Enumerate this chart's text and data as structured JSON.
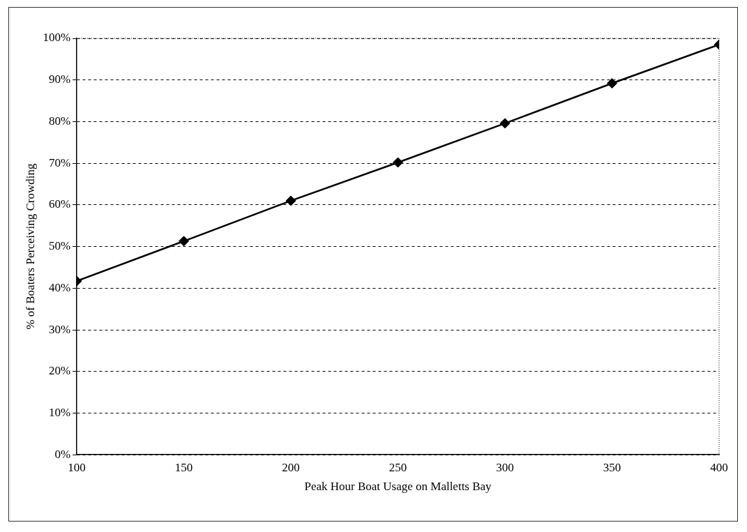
{
  "chart_data": {
    "type": "line",
    "xlabel": "Peak Hour Boat Usage on Malletts Bay",
    "ylabel": "% of Boaters Perceiving Crowding",
    "x": [
      100,
      150,
      200,
      250,
      300,
      350,
      400
    ],
    "series": [
      {
        "color": "#000000",
        "values": [
          41.7,
          51.3,
          61,
          70.2,
          79.6,
          89.2,
          98.5
        ]
      }
    ],
    "xlim": [
      100,
      400
    ],
    "xticks": [
      100,
      150,
      200,
      250,
      300,
      350,
      400
    ],
    "ylim": [
      0,
      100
    ],
    "yticks": [
      {
        "value": 0,
        "label": "0%"
      },
      {
        "value": 10,
        "label": "10%"
      },
      {
        "value": 20,
        "label": "20%"
      },
      {
        "value": 30,
        "label": "30%"
      },
      {
        "value": 40,
        "label": "40%"
      },
      {
        "value": 50,
        "label": "50%"
      },
      {
        "value": 60,
        "label": "60%"
      },
      {
        "value": 70,
        "label": "70%"
      },
      {
        "value": 80,
        "label": "80%"
      },
      {
        "value": 90,
        "label": "90%"
      },
      {
        "value": 100,
        "label": "100%"
      }
    ],
    "grid": "y",
    "legend": false,
    "marker": "diamond",
    "line_style": "solid"
  }
}
